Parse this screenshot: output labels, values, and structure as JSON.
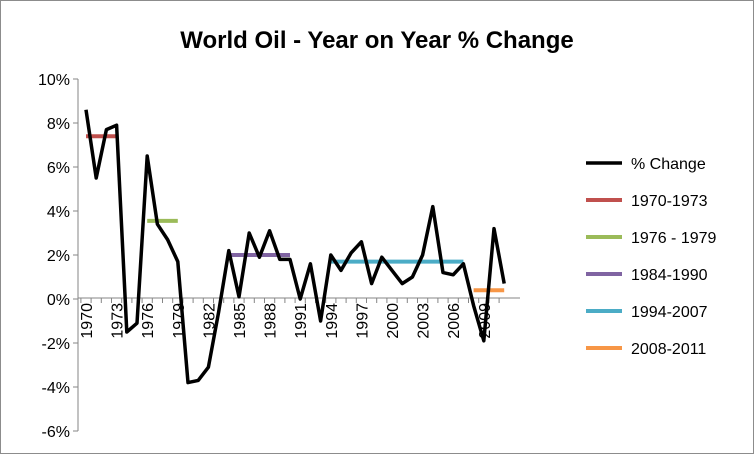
{
  "chart_data": {
    "type": "line",
    "title": "World Oil - Year on Year % Change",
    "xlabel": "",
    "ylabel": "",
    "ylim": [
      -0.06,
      0.1
    ],
    "xlim": [
      1970,
      2011
    ],
    "y_ticks": [
      "10%",
      "8%",
      "6%",
      "4%",
      "2%",
      "0%",
      "-2%",
      "-4%",
      "-6%"
    ],
    "y_tick_values": [
      0.1,
      0.08,
      0.06,
      0.04,
      0.02,
      0.0,
      -0.02,
      -0.04,
      -0.06
    ],
    "x_tick_labels": [
      "1970",
      "1973",
      "1976",
      "1979",
      "1982",
      "1985",
      "1988",
      "1991",
      "1994",
      "1997",
      "2000",
      "2003",
      "2006",
      "2009"
    ],
    "grid": "horizontal",
    "legend_position": "right",
    "series": [
      {
        "name": "% Change",
        "color": "#000000",
        "x": [
          1970,
          1971,
          1972,
          1973,
          1974,
          1975,
          1976,
          1977,
          1978,
          1979,
          1980,
          1981,
          1982,
          1983,
          1984,
          1985,
          1986,
          1987,
          1988,
          1989,
          1990,
          1991,
          1992,
          1993,
          1994,
          1995,
          1996,
          1997,
          1998,
          1999,
          2000,
          2001,
          2002,
          2003,
          2004,
          2005,
          2006,
          2007,
          2008,
          2009,
          2010,
          2011
        ],
        "values": [
          0.086,
          0.055,
          0.077,
          0.079,
          -0.015,
          -0.011,
          0.065,
          0.034,
          0.027,
          0.017,
          -0.038,
          -0.037,
          -0.031,
          -0.006,
          0.022,
          0.001,
          0.03,
          0.019,
          0.031,
          0.018,
          0.018,
          -0.0,
          0.016,
          -0.01,
          0.02,
          0.013,
          0.021,
          0.026,
          0.007,
          0.019,
          0.013,
          0.007,
          0.01,
          0.02,
          0.042,
          0.012,
          0.011,
          0.016,
          -0.003,
          -0.019,
          0.032,
          0.007
        ]
      },
      {
        "name": "1970-1973",
        "color": "#c0504d",
        "x": [
          1970,
          1973
        ],
        "values": [
          0.074,
          0.074
        ]
      },
      {
        "name": "1976 - 1979",
        "color": "#9bbb59",
        "x": [
          1976,
          1979
        ],
        "values": [
          0.0355,
          0.0355
        ]
      },
      {
        "name": "1984-1990",
        "color": "#8064a2",
        "x": [
          1984,
          1990
        ],
        "values": [
          0.02,
          0.02
        ]
      },
      {
        "name": "1994-2007",
        "color": "#4bacc6",
        "x": [
          1994,
          2007
        ],
        "values": [
          0.017,
          0.017
        ]
      },
      {
        "name": "2008-2011",
        "color": "#f79646",
        "x": [
          2008,
          2011
        ],
        "values": [
          0.004,
          0.004
        ]
      }
    ]
  }
}
